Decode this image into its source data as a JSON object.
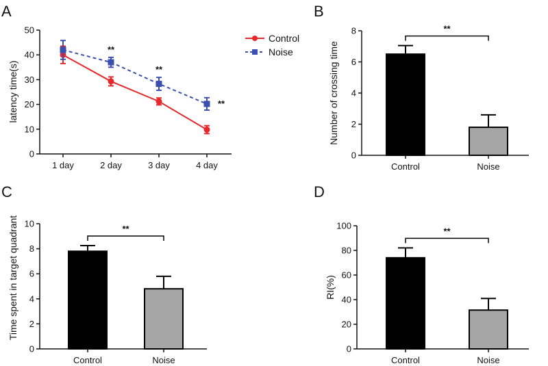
{
  "panels": [
    "A",
    "B",
    "C",
    "D"
  ],
  "colors": {
    "control_line": "#e8272a",
    "noise_line": "#3a4fb0",
    "control_bar": "#000000",
    "noise_bar": "#a6a6a6",
    "axis": "#111111"
  },
  "chart_data": [
    {
      "panel": "A",
      "type": "line",
      "categories": [
        "1 day",
        "2 day",
        "3 day",
        "4 day"
      ],
      "ylabel": "latency time(s)",
      "xlabel": "",
      "ylim": [
        0,
        50
      ],
      "yticks": [
        0,
        10,
        20,
        30,
        40,
        50
      ],
      "legend": "top-right",
      "series": [
        {
          "name": "Control",
          "values": [
            40,
            29.3,
            21.2,
            9.8
          ],
          "errors": [
            3.5,
            1.8,
            1.4,
            1.6
          ],
          "style": "solid",
          "marker": "circle",
          "color": "#e8272a"
        },
        {
          "name": "Noise",
          "values": [
            42,
            37,
            28.3,
            20.2
          ],
          "errors": [
            3.8,
            2.0,
            2.6,
            2.5
          ],
          "style": "dashed",
          "marker": "square",
          "color": "#3a4fb0"
        }
      ],
      "significance": [
        "",
        "**",
        "**",
        "**"
      ]
    },
    {
      "panel": "B",
      "type": "bar",
      "categories": [
        "Control",
        "Noise"
      ],
      "values": [
        6.5,
        1.8
      ],
      "errors": [
        0.55,
        0.8
      ],
      "ylabel": "Number of crossing time",
      "xlabel": "",
      "ylim": [
        0,
        8
      ],
      "yticks": [
        0,
        2,
        4,
        6,
        8
      ],
      "significance": "**"
    },
    {
      "panel": "C",
      "type": "bar",
      "categories": [
        "Control",
        "Noise"
      ],
      "values": [
        7.8,
        4.8
      ],
      "errors": [
        0.45,
        1.0
      ],
      "ylabel": "Time spent in target quadrant",
      "xlabel": "",
      "ylim": [
        0,
        10
      ],
      "yticks": [
        0,
        2,
        4,
        6,
        8,
        10
      ],
      "significance": "**"
    },
    {
      "panel": "D",
      "type": "bar",
      "categories": [
        "Control",
        "Noise"
      ],
      "values": [
        74,
        31.5
      ],
      "errors": [
        8,
        9.5
      ],
      "ylabel": "RI(%)",
      "xlabel": "",
      "ylim": [
        0,
        100
      ],
      "yticks": [
        0,
        20,
        40,
        60,
        80,
        100
      ],
      "significance": "**"
    }
  ]
}
